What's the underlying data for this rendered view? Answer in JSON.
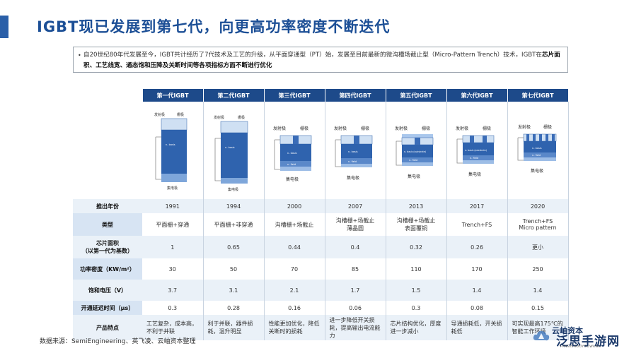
{
  "title": "IGBT现已发展到第七代，向更高功率密度不断迭代",
  "note": {
    "text": "自20世纪80年代发展至今，IGBT共计经历了7代技术及工艺的升级，从平面穿通型（PT）始，发展至目前最新的微沟槽场截止型（Micro-Pattern Trench）技术，IGBT在",
    "emphasis": "芯片面积、工艺线宽、通态饱和压降及关断时间等各项指标方面不断进行优化"
  },
  "table": {
    "headers": [
      "第一代IGBT",
      "第二代IGBT",
      "第三代IGBT",
      "第四代IGBT",
      "第五代IGBT",
      "第六代IGBT",
      "第七代IGBT"
    ],
    "diagram_labels": {
      "emitter": "发射极",
      "gate": "栅极",
      "collector": "集电极",
      "n_base": "n- basis",
      "n_base_sub": "n- basis (substrate)",
      "n_field": "n- field"
    },
    "rows": [
      {
        "label": "推出年份",
        "values": [
          "1991",
          "1994",
          "2000",
          "2007",
          "2013",
          "2017",
          "2020"
        ]
      },
      {
        "label": "类型",
        "values": [
          "平面栅+穿通",
          "平面栅+非穿通",
          "沟槽栅+场截止",
          "沟槽栅+场截止\n薄晶圆",
          "沟槽栅+场截止\n表面覆铜",
          "Trench+FS",
          "Trench+FS\nMicro pattern"
        ]
      },
      {
        "label": "芯片面积\n（以第一代为基数）",
        "values": [
          "1",
          "0.65",
          "0.44",
          "0.4",
          "0.32",
          "0.26",
          "更小"
        ]
      },
      {
        "label": "功率密度（KW/m²）",
        "values": [
          "30",
          "50",
          "70",
          "85",
          "110",
          "170",
          "250"
        ]
      },
      {
        "label": "饱和电压（V）",
        "values": [
          "3.7",
          "3.1",
          "2.1",
          "1.7",
          "1.5",
          "1.4",
          "1.4"
        ]
      },
      {
        "label": "开通延迟时间（μs）",
        "values": [
          "0.3",
          "0.28",
          "0.16",
          "0.06",
          "0.3",
          "0.08",
          "0.15"
        ]
      },
      {
        "label": "产品特点",
        "values": [
          "工艺复杂，成本高，不利于并联",
          "利于并联，器件损耗，温升明显",
          "性能更加优化，降低关断时的损耗",
          "进一步降低开关损耗，提高输出电流能力",
          "芯片结构优化，厚度进一步减小",
          "导通损耗低，开关损耗低",
          "可实现最高175℃的智能工作环境"
        ]
      }
    ]
  },
  "source": "数据来源：SemiEngineering、英飞凌、云岫资本整理",
  "watermark": {
    "line1": "云岫资本",
    "line2": "泛思手游网",
    "line3": "FANSISHOUYOUWANG"
  },
  "colors": {
    "header_bg": "#1d4a8a",
    "label_bg": "#d7e4f3",
    "stripe_bg": "#eaf1f8",
    "title": "#1c4f96"
  }
}
